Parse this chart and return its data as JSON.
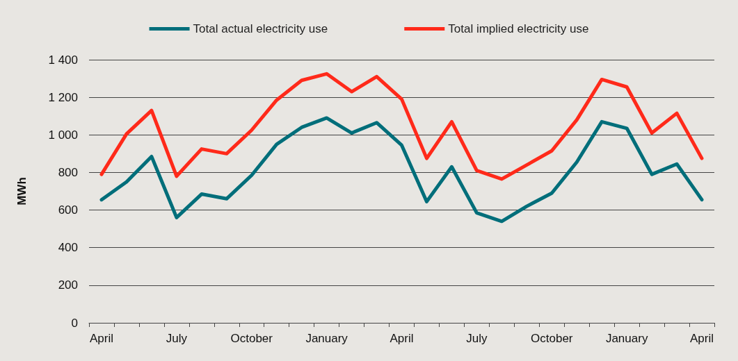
{
  "chart_data": {
    "type": "line",
    "ylabel": "MWh",
    "categories": [
      "April",
      null,
      null,
      "July",
      null,
      null,
      "October",
      null,
      null,
      "January",
      null,
      null,
      "April",
      null,
      null,
      "July",
      null,
      null,
      "October",
      null,
      null,
      "January",
      null,
      null,
      "April"
    ],
    "series": [
      {
        "name": "Total actual electricity use",
        "color": "#006e7a",
        "values": [
          655,
          750,
          885,
          560,
          685,
          660,
          785,
          950,
          1040,
          1090,
          1010,
          1065,
          945,
          645,
          830,
          585,
          540,
          620,
          690,
          855,
          1070,
          1035,
          790,
          845,
          655
        ]
      },
      {
        "name": "Total implied electricity use",
        "color": "#ff2a1a",
        "values": [
          790,
          1005,
          1130,
          780,
          925,
          900,
          1025,
          1185,
          1290,
          1325,
          1230,
          1310,
          1190,
          875,
          1070,
          810,
          765,
          840,
          915,
          1080,
          1295,
          1255,
          1010,
          1115,
          875
        ]
      }
    ],
    "ylim": [
      0,
      1400
    ],
    "yticks": [
      0,
      200,
      400,
      600,
      800,
      {
        "value": 1000,
        "label": "1 000"
      },
      {
        "value": 1200,
        "label": "1 200"
      },
      {
        "value": 1400,
        "label": "1 400"
      }
    ],
    "grid": "y",
    "legend": "top",
    "marker": "none",
    "line_style": "solid"
  }
}
